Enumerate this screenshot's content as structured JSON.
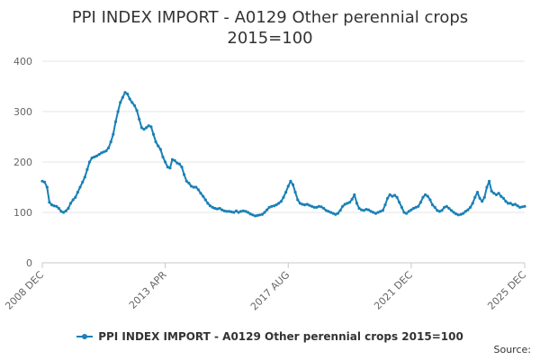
{
  "chart_data": {
    "type": "line",
    "title": "PPI INDEX IMPORT - A0129 Other perennial crops",
    "subtitle": "2015=100",
    "xlabel": "",
    "ylabel": "",
    "ylim": [
      0,
      400
    ],
    "yticks": [
      0,
      100,
      200,
      300,
      400
    ],
    "xlim": [
      "2008-12",
      "2025-12"
    ],
    "xticks": [
      "2008 DEC",
      "2013 APR",
      "2017 AUG",
      "2021 DEC",
      "2025 DEC"
    ],
    "grid": true,
    "legend": "bottom",
    "series": [
      {
        "name": "PPI INDEX IMPORT - A0129 Other perennial crops 2015=100",
        "color": "#1a80b6",
        "points": [
          [
            "2008-12",
            162
          ],
          [
            "2009-01",
            160
          ],
          [
            "2009-02",
            150
          ],
          [
            "2009-03",
            120
          ],
          [
            "2009-04",
            115
          ],
          [
            "2009-05",
            113
          ],
          [
            "2009-06",
            112
          ],
          [
            "2009-07",
            108
          ],
          [
            "2009-08",
            102
          ],
          [
            "2009-09",
            100
          ],
          [
            "2009-10",
            103
          ],
          [
            "2009-11",
            108
          ],
          [
            "2009-12",
            118
          ],
          [
            "2010-01",
            125
          ],
          [
            "2010-02",
            130
          ],
          [
            "2010-03",
            140
          ],
          [
            "2010-04",
            150
          ],
          [
            "2010-05",
            160
          ],
          [
            "2010-06",
            170
          ],
          [
            "2010-07",
            185
          ],
          [
            "2010-08",
            200
          ],
          [
            "2010-09",
            208
          ],
          [
            "2010-10",
            210
          ],
          [
            "2010-11",
            212
          ],
          [
            "2010-12",
            215
          ],
          [
            "2011-01",
            218
          ],
          [
            "2011-02",
            220
          ],
          [
            "2011-03",
            222
          ],
          [
            "2011-04",
            228
          ],
          [
            "2011-05",
            240
          ],
          [
            "2011-06",
            255
          ],
          [
            "2011-07",
            280
          ],
          [
            "2011-08",
            300
          ],
          [
            "2011-09",
            318
          ],
          [
            "2011-10",
            328
          ],
          [
            "2011-11",
            338
          ],
          [
            "2011-12",
            335
          ],
          [
            "2012-01",
            325
          ],
          [
            "2012-02",
            318
          ],
          [
            "2012-03",
            312
          ],
          [
            "2012-04",
            302
          ],
          [
            "2012-05",
            285
          ],
          [
            "2012-06",
            268
          ],
          [
            "2012-07",
            265
          ],
          [
            "2012-08",
            268
          ],
          [
            "2012-09",
            272
          ],
          [
            "2012-10",
            270
          ],
          [
            "2012-11",
            255
          ],
          [
            "2012-12",
            240
          ],
          [
            "2013-01",
            232
          ],
          [
            "2013-02",
            225
          ],
          [
            "2013-03",
            210
          ],
          [
            "2013-04",
            200
          ],
          [
            "2013-05",
            190
          ],
          [
            "2013-06",
            188
          ],
          [
            "2013-07",
            205
          ],
          [
            "2013-08",
            203
          ],
          [
            "2013-09",
            198
          ],
          [
            "2013-10",
            196
          ],
          [
            "2013-11",
            190
          ],
          [
            "2013-12",
            175
          ],
          [
            "2014-01",
            162
          ],
          [
            "2014-02",
            158
          ],
          [
            "2014-03",
            152
          ],
          [
            "2014-04",
            150
          ],
          [
            "2014-05",
            150
          ],
          [
            "2014-06",
            145
          ],
          [
            "2014-07",
            138
          ],
          [
            "2014-08",
            132
          ],
          [
            "2014-09",
            125
          ],
          [
            "2014-10",
            118
          ],
          [
            "2014-11",
            113
          ],
          [
            "2014-12",
            110
          ],
          [
            "2015-01",
            108
          ],
          [
            "2015-02",
            107
          ],
          [
            "2015-03",
            108
          ],
          [
            "2015-04",
            105
          ],
          [
            "2015-05",
            103
          ],
          [
            "2015-06",
            102
          ],
          [
            "2015-07",
            102
          ],
          [
            "2015-08",
            101
          ],
          [
            "2015-09",
            100
          ],
          [
            "2015-10",
            103
          ],
          [
            "2015-11",
            100
          ],
          [
            "2015-12",
            102
          ],
          [
            "2016-01",
            103
          ],
          [
            "2016-02",
            102
          ],
          [
            "2016-03",
            100
          ],
          [
            "2016-04",
            97
          ],
          [
            "2016-05",
            95
          ],
          [
            "2016-06",
            93
          ],
          [
            "2016-07",
            94
          ],
          [
            "2016-08",
            95
          ],
          [
            "2016-09",
            96
          ],
          [
            "2016-10",
            100
          ],
          [
            "2016-11",
            105
          ],
          [
            "2016-12",
            110
          ],
          [
            "2017-01",
            112
          ],
          [
            "2017-02",
            113
          ],
          [
            "2017-03",
            115
          ],
          [
            "2017-04",
            118
          ],
          [
            "2017-05",
            122
          ],
          [
            "2017-06",
            130
          ],
          [
            "2017-07",
            140
          ],
          [
            "2017-08",
            152
          ],
          [
            "2017-09",
            162
          ],
          [
            "2017-10",
            155
          ],
          [
            "2017-11",
            140
          ],
          [
            "2017-12",
            125
          ],
          [
            "2018-01",
            118
          ],
          [
            "2018-02",
            116
          ],
          [
            "2018-03",
            115
          ],
          [
            "2018-04",
            116
          ],
          [
            "2018-05",
            114
          ],
          [
            "2018-06",
            112
          ],
          [
            "2018-07",
            110
          ],
          [
            "2018-08",
            110
          ],
          [
            "2018-09",
            112
          ],
          [
            "2018-10",
            111
          ],
          [
            "2018-11",
            108
          ],
          [
            "2018-12",
            104
          ],
          [
            "2019-01",
            102
          ],
          [
            "2019-02",
            100
          ],
          [
            "2019-03",
            98
          ],
          [
            "2019-04",
            96
          ],
          [
            "2019-05",
            98
          ],
          [
            "2019-06",
            104
          ],
          [
            "2019-07",
            112
          ],
          [
            "2019-08",
            116
          ],
          [
            "2019-09",
            118
          ],
          [
            "2019-10",
            120
          ],
          [
            "2019-11",
            126
          ],
          [
            "2019-12",
            135
          ],
          [
            "2020-01",
            118
          ],
          [
            "2020-02",
            108
          ],
          [
            "2020-03",
            105
          ],
          [
            "2020-04",
            104
          ],
          [
            "2020-05",
            106
          ],
          [
            "2020-06",
            105
          ],
          [
            "2020-07",
            102
          ],
          [
            "2020-08",
            100
          ],
          [
            "2020-09",
            98
          ],
          [
            "2020-10",
            100
          ],
          [
            "2020-11",
            102
          ],
          [
            "2020-12",
            104
          ],
          [
            "2021-01",
            115
          ],
          [
            "2021-02",
            128
          ],
          [
            "2021-03",
            135
          ],
          [
            "2021-04",
            132
          ],
          [
            "2021-05",
            134
          ],
          [
            "2021-06",
            130
          ],
          [
            "2021-07",
            120
          ],
          [
            "2021-08",
            110
          ],
          [
            "2021-09",
            100
          ],
          [
            "2021-10",
            98
          ],
          [
            "2021-11",
            102
          ],
          [
            "2021-12",
            105
          ],
          [
            "2022-01",
            108
          ],
          [
            "2022-02",
            110
          ],
          [
            "2022-03",
            112
          ],
          [
            "2022-04",
            120
          ],
          [
            "2022-05",
            130
          ],
          [
            "2022-06",
            135
          ],
          [
            "2022-07",
            132
          ],
          [
            "2022-08",
            125
          ],
          [
            "2022-09",
            115
          ],
          [
            "2022-10",
            110
          ],
          [
            "2022-11",
            104
          ],
          [
            "2022-12",
            102
          ],
          [
            "2023-01",
            104
          ],
          [
            "2023-02",
            110
          ],
          [
            "2023-03",
            112
          ],
          [
            "2023-04",
            108
          ],
          [
            "2023-05",
            104
          ],
          [
            "2023-06",
            100
          ],
          [
            "2023-07",
            97
          ],
          [
            "2023-08",
            95
          ],
          [
            "2023-09",
            96
          ],
          [
            "2023-10",
            98
          ],
          [
            "2023-11",
            102
          ],
          [
            "2023-12",
            105
          ],
          [
            "2024-01",
            110
          ],
          [
            "2024-02",
            118
          ],
          [
            "2024-03",
            130
          ],
          [
            "2024-04",
            140
          ],
          [
            "2024-05",
            128
          ],
          [
            "2024-06",
            122
          ],
          [
            "2024-07",
            130
          ],
          [
            "2024-08",
            150
          ],
          [
            "2024-09",
            162
          ],
          [
            "2024-10",
            142
          ],
          [
            "2024-11",
            138
          ],
          [
            "2024-12",
            135
          ],
          [
            "2025-01",
            138
          ],
          [
            "2025-02",
            132
          ],
          [
            "2025-03",
            128
          ],
          [
            "2025-04",
            122
          ],
          [
            "2025-05",
            118
          ],
          [
            "2025-06",
            118
          ],
          [
            "2025-07",
            115
          ],
          [
            "2025-08",
            116
          ],
          [
            "2025-09",
            113
          ],
          [
            "2025-10",
            110
          ],
          [
            "2025-11",
            111
          ],
          [
            "2025-12",
            112
          ]
        ]
      }
    ]
  },
  "source_label": "Source:"
}
